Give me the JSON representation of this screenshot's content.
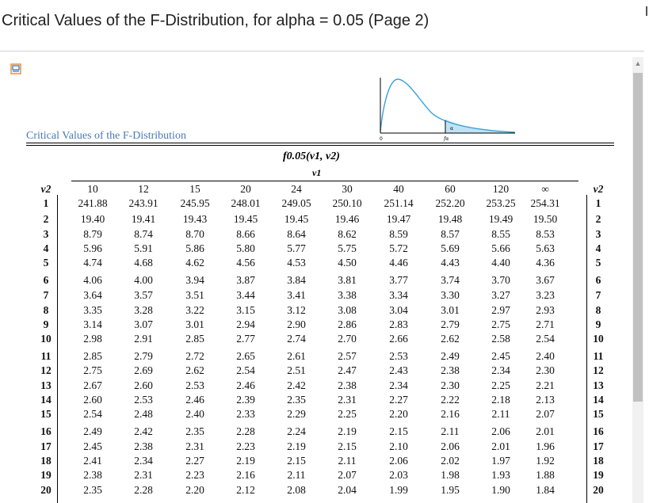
{
  "title": "Critical Values of the F-Distribution, for alpha = 0.05 (Page 2)",
  "viewer": {
    "document_icon": "document-icon",
    "caption": "Critical Values of the F-Distribution"
  },
  "table": {
    "header_formula": "f0.05(v1, v2)",
    "v1_label": "v1",
    "v2_label": "v2",
    "plot_labels": {
      "origin": "0",
      "alpha": "α",
      "critical": "fα"
    },
    "columns": [
      "10",
      "12",
      "15",
      "20",
      "24",
      "30",
      "40",
      "60",
      "120",
      "∞"
    ],
    "rows": [
      {
        "v2": "1",
        "values": [
          "241.88",
          "243.91",
          "245.95",
          "248.01",
          "249.05",
          "250.10",
          "251.14",
          "252.20",
          "253.25",
          "254.31"
        ]
      },
      {
        "v2": "2",
        "values": [
          "19.40",
          "19.41",
          "19.43",
          "19.45",
          "19.45",
          "19.46",
          "19.47",
          "19.48",
          "19.49",
          "19.50"
        ]
      },
      {
        "v2": "3",
        "values": [
          "8.79",
          "8.74",
          "8.70",
          "8.66",
          "8.64",
          "8.62",
          "8.59",
          "8.57",
          "8.55",
          "8.53"
        ]
      },
      {
        "v2": "4",
        "values": [
          "5.96",
          "5.91",
          "5.86",
          "5.80",
          "5.77",
          "5.75",
          "5.72",
          "5.69",
          "5.66",
          "5.63"
        ]
      },
      {
        "v2": "5",
        "values": [
          "4.74",
          "4.68",
          "4.62",
          "4.56",
          "4.53",
          "4.50",
          "4.46",
          "4.43",
          "4.40",
          "4.36"
        ]
      },
      {
        "v2": "6",
        "values": [
          "4.06",
          "4.00",
          "3.94",
          "3.87",
          "3.84",
          "3.81",
          "3.77",
          "3.74",
          "3.70",
          "3.67"
        ]
      },
      {
        "v2": "7",
        "values": [
          "3.64",
          "3.57",
          "3.51",
          "3.44",
          "3.41",
          "3.38",
          "3.34",
          "3.30",
          "3.27",
          "3.23"
        ]
      },
      {
        "v2": "8",
        "values": [
          "3.35",
          "3.28",
          "3.22",
          "3.15",
          "3.12",
          "3.08",
          "3.04",
          "3.01",
          "2.97",
          "2.93"
        ]
      },
      {
        "v2": "9",
        "values": [
          "3.14",
          "3.07",
          "3.01",
          "2.94",
          "2.90",
          "2.86",
          "2.83",
          "2.79",
          "2.75",
          "2.71"
        ]
      },
      {
        "v2": "10",
        "values": [
          "2.98",
          "2.91",
          "2.85",
          "2.77",
          "2.74",
          "2.70",
          "2.66",
          "2.62",
          "2.58",
          "2.54"
        ]
      },
      {
        "v2": "11",
        "values": [
          "2.85",
          "2.79",
          "2.72",
          "2.65",
          "2.61",
          "2.57",
          "2.53",
          "2.49",
          "2.45",
          "2.40"
        ]
      },
      {
        "v2": "12",
        "values": [
          "2.75",
          "2.69",
          "2.62",
          "2.54",
          "2.51",
          "2.47",
          "2.43",
          "2.38",
          "2.34",
          "2.30"
        ]
      },
      {
        "v2": "13",
        "values": [
          "2.67",
          "2.60",
          "2.53",
          "2.46",
          "2.42",
          "2.38",
          "2.34",
          "2.30",
          "2.25",
          "2.21"
        ]
      },
      {
        "v2": "14",
        "values": [
          "2.60",
          "2.53",
          "2.46",
          "2.39",
          "2.35",
          "2.31",
          "2.27",
          "2.22",
          "2.18",
          "2.13"
        ]
      },
      {
        "v2": "15",
        "values": [
          "2.54",
          "2.48",
          "2.40",
          "2.33",
          "2.29",
          "2.25",
          "2.20",
          "2.16",
          "2.11",
          "2.07"
        ]
      },
      {
        "v2": "16",
        "values": [
          "2.49",
          "2.42",
          "2.35",
          "2.28",
          "2.24",
          "2.19",
          "2.15",
          "2.11",
          "2.06",
          "2.01"
        ]
      },
      {
        "v2": "17",
        "values": [
          "2.45",
          "2.38",
          "2.31",
          "2.23",
          "2.19",
          "2.15",
          "2.10",
          "2.06",
          "2.01",
          "1.96"
        ]
      },
      {
        "v2": "18",
        "values": [
          "2.41",
          "2.34",
          "2.27",
          "2.19",
          "2.15",
          "2.11",
          "2.06",
          "2.02",
          "1.97",
          "1.92"
        ]
      },
      {
        "v2": "19",
        "values": [
          "2.38",
          "2.31",
          "2.23",
          "2.16",
          "2.11",
          "2.07",
          "2.03",
          "1.98",
          "1.93",
          "1.88"
        ]
      },
      {
        "v2": "20",
        "values": [
          "2.35",
          "2.28",
          "2.20",
          "2.12",
          "2.08",
          "2.04",
          "1.99",
          "1.95",
          "1.90",
          "1.84"
        ]
      }
    ]
  },
  "colors": {
    "caption": "#4a7ab7",
    "curve": "#3aa0d8",
    "shade": "#bfe3f5"
  }
}
